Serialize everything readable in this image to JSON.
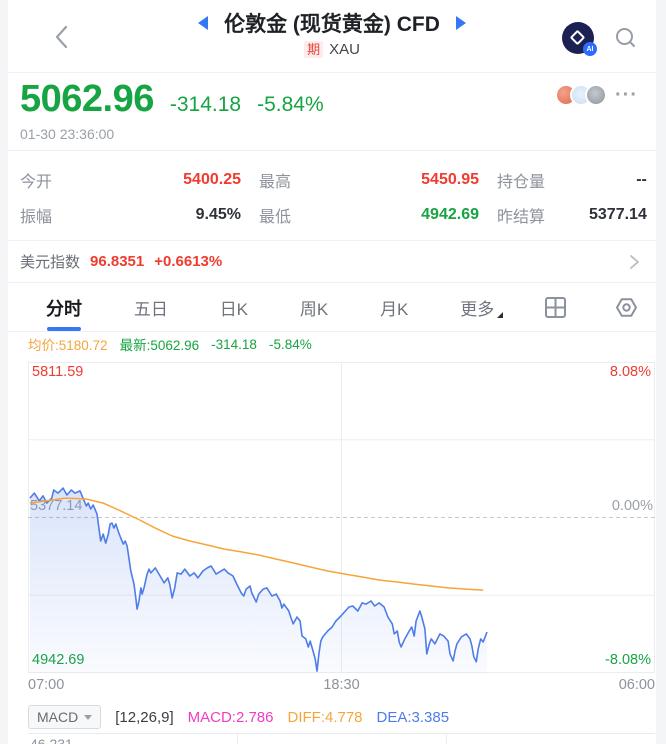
{
  "header": {
    "title": "伦敦金 (现货黄金) CFD",
    "badge": "期",
    "symbol": "XAU",
    "logo_ai": "AI"
  },
  "quote": {
    "price": "5062.96",
    "change": "-314.18",
    "change_pct": "-5.84%",
    "timestamp": "01-30 23:36:00",
    "more": "···"
  },
  "stats": [
    {
      "label": "今开",
      "value": "5400.25",
      "color": "red"
    },
    {
      "label": "最高",
      "value": "5450.95",
      "color": "red"
    },
    {
      "label": "持仓量",
      "value": "--",
      "color": "dark"
    },
    {
      "label": "振幅",
      "value": "9.45%",
      "color": "dark"
    },
    {
      "label": "最低",
      "value": "4942.69",
      "color": "green"
    },
    {
      "label": "昨结算",
      "value": "5377.14",
      "color": "dark"
    }
  ],
  "usd_index": {
    "label": "美元指数",
    "value": "96.8351",
    "change": "+0.6613%"
  },
  "tabs": [
    "分时",
    "五日",
    "日K",
    "周K",
    "月K",
    "更多"
  ],
  "legend": {
    "avg_label": "均价:",
    "avg_value": "5180.72",
    "latest_label": "最新:",
    "latest_value": "5062.96",
    "latest_change": "-314.18",
    "latest_pct": "-5.84%"
  },
  "chart_data": {
    "type": "line",
    "title": "分时 intraday line chart, London Gold CFD",
    "baseline": 5377.14,
    "ylim_price": [
      4942.69,
      5811.59
    ],
    "ylim_pct": [
      -8.08,
      8.08
    ],
    "y_left_labels": [
      "5811.59",
      "5377.14",
      "4942.69"
    ],
    "y_right_labels": [
      "8.08%",
      "0.00%",
      "-8.08%"
    ],
    "x_labels": [
      "07:00",
      "18:30",
      "06:00"
    ],
    "grid": {
      "h_solid_pct": [
        4.04,
        -4.04
      ],
      "h_dashed_pct": [
        0
      ],
      "v_center": true
    },
    "series": [
      {
        "name": "最新价",
        "color": "#4e7ce9",
        "fill": true,
        "points": [
          [
            0.003,
            1.01
          ],
          [
            0.01,
            1.27
          ],
          [
            0.018,
            0.86
          ],
          [
            0.024,
            1.12
          ],
          [
            0.03,
            0.75
          ],
          [
            0.038,
            1.01
          ],
          [
            0.041,
            1.43
          ],
          [
            0.048,
            1.27
          ],
          [
            0.056,
            1.53
          ],
          [
            0.062,
            1.17
          ],
          [
            0.069,
            1.43
          ],
          [
            0.075,
            1.27
          ],
          [
            0.083,
            1.38
          ],
          [
            0.089,
            0.91
          ],
          [
            0.093,
            0.6
          ],
          [
            0.096,
            0.75
          ],
          [
            0.1,
            0.44
          ],
          [
            0.104,
            0.65
          ],
          [
            0.11,
            0.18
          ],
          [
            0.113,
            -0.55
          ],
          [
            0.116,
            -1.22
          ],
          [
            0.12,
            -0.86
          ],
          [
            0.124,
            -1.33
          ],
          [
            0.128,
            -0.86
          ],
          [
            0.131,
            -0.34
          ],
          [
            0.134,
            -0.29
          ],
          [
            0.137,
            -0.55
          ],
          [
            0.14,
            -0.34
          ],
          [
            0.145,
            -0.81
          ],
          [
            0.148,
            -1.07
          ],
          [
            0.152,
            -1.38
          ],
          [
            0.155,
            -1.22
          ],
          [
            0.158,
            -1.48
          ],
          [
            0.161,
            -2.1
          ],
          [
            0.164,
            -2.78
          ],
          [
            0.169,
            -3.46
          ],
          [
            0.172,
            -4.18
          ],
          [
            0.174,
            -4.76
          ],
          [
            0.177,
            -4.34
          ],
          [
            0.18,
            -3.66
          ],
          [
            0.182,
            -3.98
          ],
          [
            0.185,
            -3.66
          ],
          [
            0.19,
            -2.94
          ],
          [
            0.193,
            -2.68
          ],
          [
            0.196,
            -2.88
          ],
          [
            0.203,
            -2.62
          ],
          [
            0.209,
            -2.94
          ],
          [
            0.217,
            -3.4
          ],
          [
            0.223,
            -3.14
          ],
          [
            0.226,
            -3.46
          ],
          [
            0.23,
            -4.18
          ],
          [
            0.234,
            -3.66
          ],
          [
            0.238,
            -2.88
          ],
          [
            0.244,
            -2.94
          ],
          [
            0.25,
            -2.68
          ],
          [
            0.258,
            -3.04
          ],
          [
            0.265,
            -2.88
          ],
          [
            0.271,
            -3.14
          ],
          [
            0.279,
            -2.78
          ],
          [
            0.286,
            -2.62
          ],
          [
            0.292,
            -2.52
          ],
          [
            0.3,
            -2.94
          ],
          [
            0.313,
            -2.68
          ],
          [
            0.319,
            -2.88
          ],
          [
            0.327,
            -3.04
          ],
          [
            0.333,
            -3.46
          ],
          [
            0.34,
            -3.92
          ],
          [
            0.344,
            -4.08
          ],
          [
            0.348,
            -3.72
          ],
          [
            0.354,
            -3.56
          ],
          [
            0.357,
            -3.92
          ],
          [
            0.364,
            -4.39
          ],
          [
            0.368,
            -3.98
          ],
          [
            0.375,
            -3.72
          ],
          [
            0.381,
            -3.66
          ],
          [
            0.389,
            -4.08
          ],
          [
            0.396,
            -3.98
          ],
          [
            0.402,
            -4.34
          ],
          [
            0.405,
            -4.7
          ],
          [
            0.408,
            -4.5
          ],
          [
            0.416,
            -4.86
          ],
          [
            0.419,
            -5.17
          ],
          [
            0.423,
            -5.53
          ],
          [
            0.429,
            -5.17
          ],
          [
            0.434,
            -5.38
          ],
          [
            0.437,
            -6.16
          ],
          [
            0.443,
            -6.31
          ],
          [
            0.447,
            -6.73
          ],
          [
            0.45,
            -6.42
          ],
          [
            0.455,
            -6.99
          ],
          [
            0.458,
            -7.35
          ],
          [
            0.461,
            -7.98
          ],
          [
            0.464,
            -7.09
          ],
          [
            0.467,
            -6.42
          ],
          [
            0.47,
            -6.21
          ],
          [
            0.478,
            -5.9
          ],
          [
            0.485,
            -5.69
          ],
          [
            0.491,
            -5.38
          ],
          [
            0.499,
            -5.12
          ],
          [
            0.506,
            -4.86
          ],
          [
            0.512,
            -4.65
          ],
          [
            0.518,
            -4.6
          ],
          [
            0.526,
            -4.86
          ],
          [
            0.533,
            -4.44
          ],
          [
            0.539,
            -4.5
          ],
          [
            0.547,
            -4.34
          ],
          [
            0.553,
            -4.6
          ],
          [
            0.56,
            -4.44
          ],
          [
            0.568,
            -4.65
          ],
          [
            0.574,
            -5.17
          ],
          [
            0.581,
            -5.53
          ],
          [
            0.584,
            -6.05
          ],
          [
            0.589,
            -5.9
          ],
          [
            0.592,
            -6.47
          ],
          [
            0.595,
            -6.73
          ],
          [
            0.601,
            -6.31
          ],
          [
            0.608,
            -5.9
          ],
          [
            0.612,
            -5.69
          ],
          [
            0.616,
            -6.16
          ],
          [
            0.619,
            -5.38
          ],
          [
            0.625,
            -4.86
          ],
          [
            0.628,
            -5.17
          ],
          [
            0.633,
            -5.79
          ],
          [
            0.636,
            -7.09
          ],
          [
            0.64,
            -6.57
          ],
          [
            0.643,
            -6.31
          ],
          [
            0.649,
            -6.57
          ],
          [
            0.657,
            -6.05
          ],
          [
            0.663,
            -6.16
          ],
          [
            0.67,
            -6.42
          ],
          [
            0.673,
            -7.09
          ],
          [
            0.678,
            -7.45
          ],
          [
            0.681,
            -6.94
          ],
          [
            0.684,
            -6.57
          ],
          [
            0.691,
            -6.21
          ],
          [
            0.699,
            -6.05
          ],
          [
            0.705,
            -6.31
          ],
          [
            0.708,
            -6.68
          ],
          [
            0.711,
            -7.24
          ],
          [
            0.715,
            -7.5
          ],
          [
            0.718,
            -6.83
          ],
          [
            0.722,
            -6.31
          ],
          [
            0.726,
            -6.47
          ],
          [
            0.729,
            -6.21
          ],
          [
            0.732,
            -5.95
          ]
        ]
      },
      {
        "name": "均价",
        "color": "#f6a43b",
        "fill": false,
        "points": [
          [
            0.003,
            0.75
          ],
          [
            0.059,
            1.01
          ],
          [
            0.093,
            0.96
          ],
          [
            0.12,
            0.75
          ],
          [
            0.148,
            0.34
          ],
          [
            0.175,
            -0.08
          ],
          [
            0.203,
            -0.55
          ],
          [
            0.23,
            -0.96
          ],
          [
            0.258,
            -1.22
          ],
          [
            0.286,
            -1.43
          ],
          [
            0.313,
            -1.64
          ],
          [
            0.34,
            -1.79
          ],
          [
            0.368,
            -1.95
          ],
          [
            0.396,
            -2.16
          ],
          [
            0.423,
            -2.36
          ],
          [
            0.45,
            -2.57
          ],
          [
            0.478,
            -2.78
          ],
          [
            0.506,
            -2.94
          ],
          [
            0.533,
            -3.09
          ],
          [
            0.56,
            -3.25
          ],
          [
            0.589,
            -3.35
          ],
          [
            0.616,
            -3.46
          ],
          [
            0.643,
            -3.56
          ],
          [
            0.67,
            -3.66
          ],
          [
            0.699,
            -3.72
          ],
          [
            0.726,
            -3.77
          ]
        ]
      }
    ]
  },
  "macd": {
    "selector_label": "MACD",
    "params": "[12,26,9]",
    "macd_value": "MACD:2.786",
    "diff_value": "DIFF:4.778",
    "dea_value": "DEA:3.385",
    "pane_scale_top": "46.231"
  },
  "colors": {
    "up": "#ef3b30",
    "down": "#17a442",
    "accent": "#3478f6",
    "price_line": "#4e7ce9",
    "avg_line": "#f6a43b",
    "macd": "#f23cc0"
  }
}
